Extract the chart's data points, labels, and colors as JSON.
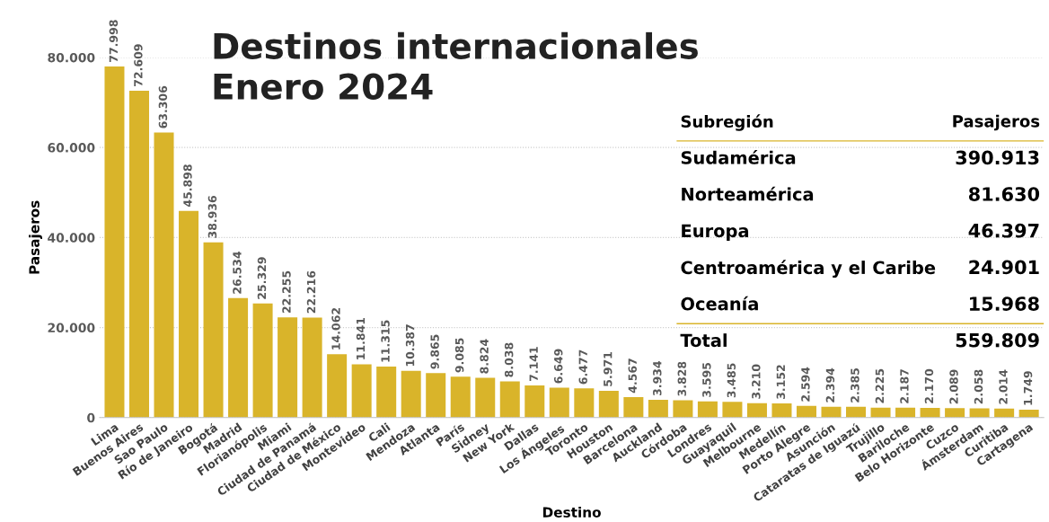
{
  "chart_data": [
    {
      "type": "bar",
      "title": "Destinos internacionales\nEnero 2024",
      "xlabel": "Destino",
      "ylabel": "Pasajeros",
      "color": "#d9b42a",
      "grid": "y",
      "line_style": "dotted",
      "categories": [
        "Lima",
        "Buenos Aires",
        "Sao Paulo",
        "Río de Janeiro",
        "Bogotá",
        "Madrid",
        "Florianópolis",
        "Miami",
        "Ciudad de Panamá",
        "Ciudad de México",
        "Montevideo",
        "Cali",
        "Mendoza",
        "Atlanta",
        "París",
        "Sidney",
        "New York",
        "Dallas",
        "Los Ángeles",
        "Toronto",
        "Houston",
        "Barcelona",
        "Auckland",
        "Córdoba",
        "Londres",
        "Guayaquil",
        "Melbourne",
        "Medellín",
        "Porto Alegre",
        "Asunción",
        "Cataratas de Iguazú",
        "Trujillo",
        "Bariloche",
        "Belo Horizonte",
        "Cuzco",
        "Ámsterdam",
        "Curitiba",
        "Cartagena"
      ],
      "values": [
        77998,
        72609,
        63306,
        45898,
        38936,
        26534,
        25329,
        22255,
        22216,
        14062,
        11841,
        11315,
        10387,
        9865,
        9085,
        8824,
        8038,
        7141,
        6649,
        6477,
        5971,
        4567,
        3934,
        3828,
        3595,
        3485,
        3210,
        3152,
        2594,
        2394,
        2385,
        2225,
        2187,
        2170,
        2089,
        2058,
        2014,
        1749
      ],
      "value_labels": [
        "77.998",
        "72.609",
        "63.306",
        "45.898",
        "38.936",
        "26.534",
        "25.329",
        "22.255",
        "22.216",
        "14.062",
        "11.841",
        "11.315",
        "10.387",
        "9.865",
        "9.085",
        "8.824",
        "8.038",
        "7.141",
        "6.649",
        "6.477",
        "5.971",
        "4.567",
        "3.934",
        "3.828",
        "3.595",
        "3.485",
        "3.210",
        "3.152",
        "2.594",
        "2.394",
        "2.385",
        "2.225",
        "2.187",
        "2.170",
        "2.089",
        "2.058",
        "2.014",
        "1.749"
      ],
      "ylim": [
        0,
        80000
      ],
      "yticks": [
        0,
        {
          "value": 20000,
          "label": "20.000"
        },
        {
          "value": 40000,
          "label": "40.000"
        },
        {
          "value": 60000,
          "label": "60.000"
        },
        {
          "value": 80000,
          "label": "80.000"
        }
      ]
    },
    {
      "type": "other",
      "xlabel": "Subregión",
      "ylabel": "Pasajeros",
      "color": "#d9b42a",
      "categories": [
        "Sudamérica",
        "Norteamérica",
        "Europa",
        "Centroamérica y el Caribe",
        "Oceanía",
        "Total"
      ],
      "values": [
        390913,
        81630,
        46397,
        24901,
        15968,
        559809
      ],
      "value_labels": [
        "390.913",
        "81.630",
        "46.397",
        "24.901",
        "15.968",
        "559.809"
      ]
    }
  ]
}
